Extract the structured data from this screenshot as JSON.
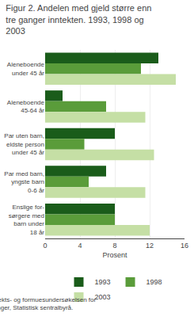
{
  "chart_data": {
    "type": "bar",
    "orientation": "horizontal",
    "title": "Figur 2. Andelen med gjeld større enn\ntre ganger inntekten. 1993, 1998 og\n2003",
    "categories": [
      "Aleneboende\nunder 45 år",
      "Aleneboende\n45-64 år",
      "Par uten barn,\neldste person\nunder 45 år",
      "Par med barn,\nyngste barn\n0-6 år",
      "Enslige for-\nsørgere med\nbarn under\n18 år"
    ],
    "series": [
      {
        "name": "1993",
        "color": "#1a5c1a",
        "values": [
          13.0,
          2.0,
          8.0,
          7.0,
          8.0
        ]
      },
      {
        "name": "1998",
        "color": "#5a9c3a",
        "values": [
          11.0,
          7.0,
          4.5,
          5.0,
          8.0
        ]
      },
      {
        "name": "2003",
        "color": "#c5dfa5",
        "values": [
          15.0,
          11.5,
          12.5,
          11.5,
          12.0
        ]
      }
    ],
    "xlabel": "Prosent",
    "xlim": [
      0,
      16
    ],
    "xticks": [
      0,
      4,
      8,
      12,
      16
    ],
    "grid": true,
    "legend": "bottom",
    "annotations": [
      "Kilde: Inntekts- og formuesundersøkelsen for\nhusholdninger, Statistisk sentralbyrå."
    ]
  }
}
